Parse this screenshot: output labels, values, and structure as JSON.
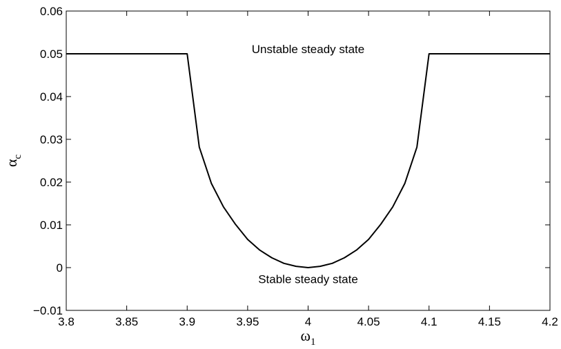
{
  "chart_data": {
    "type": "line",
    "title": "",
    "xlabel": {
      "symbol": "ω",
      "subscript": "1"
    },
    "ylabel": {
      "symbol": "α",
      "subscript": "c"
    },
    "xlim": [
      3.8,
      4.2
    ],
    "ylim": [
      -0.01,
      0.06
    ],
    "x_ticks": [
      3.8,
      3.85,
      3.9,
      3.95,
      4.0,
      4.05,
      4.1,
      4.15,
      4.2
    ],
    "x_tick_labels": [
      "3.8",
      "3.85",
      "3.9",
      "3.95",
      "4",
      "4.05",
      "4.1",
      "4.15",
      "4.2"
    ],
    "y_ticks": [
      -0.01,
      0,
      0.01,
      0.02,
      0.03,
      0.04,
      0.05,
      0.06
    ],
    "y_tick_labels": [
      "−0.01",
      "0",
      "0.01",
      "0.02",
      "0.03",
      "0.04",
      "0.05",
      "0.06"
    ],
    "grid": false,
    "series": [
      {
        "color": "#000000",
        "x": [
          3.8,
          3.9,
          3.91,
          3.92,
          3.93,
          3.94,
          3.95,
          3.96,
          3.97,
          3.98,
          3.99,
          4.0,
          4.01,
          4.02,
          4.03,
          4.04,
          4.05,
          4.06,
          4.07,
          4.08,
          4.09,
          4.1,
          4.2
        ],
        "y": [
          0.05,
          0.05,
          0.0282,
          0.0197,
          0.0142,
          0.0101,
          0.0066,
          0.0041,
          0.0023,
          0.001,
          0.0003,
          0.0,
          0.0003,
          0.001,
          0.0023,
          0.0041,
          0.0066,
          0.0101,
          0.0142,
          0.0197,
          0.0282,
          0.05,
          0.05
        ]
      }
    ],
    "annotations": [
      {
        "text": "Unstable steady state",
        "x": 4.0,
        "y": 0.0502
      },
      {
        "text": "Stable steady state",
        "x": 4.0,
        "y": -0.0036
      }
    ]
  }
}
